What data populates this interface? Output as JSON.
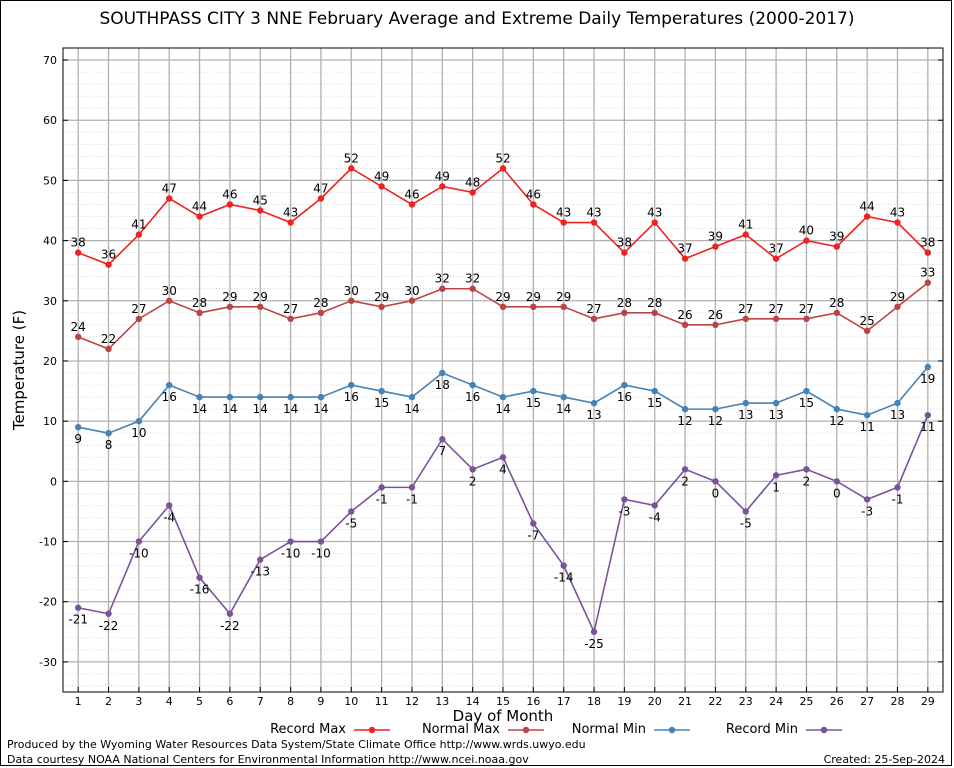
{
  "chart_data": {
    "type": "line",
    "title": "SOUTHPASS CITY 3 NNE February Average and Extreme Daily Temperatures (2000-2017)",
    "xlabel": "Day of Month",
    "ylabel": "Temperature (F)",
    "x": [
      1,
      2,
      3,
      4,
      5,
      6,
      7,
      8,
      9,
      10,
      11,
      12,
      13,
      14,
      15,
      16,
      17,
      18,
      19,
      20,
      21,
      22,
      23,
      24,
      25,
      26,
      27,
      28,
      29
    ],
    "xlim": [
      0.5,
      29.5
    ],
    "ylim": [
      -35,
      72
    ],
    "yticks": [
      -30,
      -20,
      -10,
      0,
      10,
      20,
      30,
      40,
      50,
      60,
      70
    ],
    "grid": true,
    "legend_position": "bottom",
    "series": [
      {
        "name": "Record Max",
        "color": "#ee2222",
        "values": [
          38,
          36,
          41,
          47,
          44,
          46,
          45,
          43,
          47,
          52,
          49,
          46,
          49,
          48,
          52,
          46,
          43,
          43,
          38,
          43,
          37,
          39,
          41,
          37,
          40,
          39,
          44,
          43,
          38
        ]
      },
      {
        "name": "Normal Max",
        "color": "#bb4444",
        "values": [
          24,
          22,
          27,
          30,
          28,
          29,
          29,
          27,
          28,
          30,
          29,
          30,
          32,
          32,
          29,
          29,
          29,
          27,
          28,
          28,
          26,
          26,
          27,
          27,
          27,
          28,
          25,
          29,
          33
        ]
      },
      {
        "name": "Normal Min",
        "color": "#4682b4",
        "values": [
          9,
          8,
          10,
          16,
          14,
          14,
          14,
          14,
          14,
          16,
          15,
          14,
          18,
          16,
          14,
          15,
          14,
          13,
          16,
          15,
          12,
          12,
          13,
          13,
          15,
          12,
          11,
          13,
          19
        ]
      },
      {
        "name": "Record Min",
        "color": "#7b539b",
        "values": [
          -21,
          -22,
          -10,
          -4,
          -16,
          -22,
          -13,
          -10,
          -10,
          -5,
          -1,
          -1,
          7,
          2,
          4,
          -7,
          -14,
          -25,
          -3,
          -4,
          2,
          0,
          -5,
          1,
          2,
          0,
          -3,
          -1,
          11
        ]
      }
    ]
  },
  "footer": {
    "produced_by": "Produced by the Wyoming Water Resources Data System/State Climate Office http://www.wrds.uwyo.edu",
    "courtesy": "Data courtesy NOAA National Centers for Environmental Information http://www.ncei.noaa.gov",
    "created": "Created:  25-Sep-2024"
  }
}
